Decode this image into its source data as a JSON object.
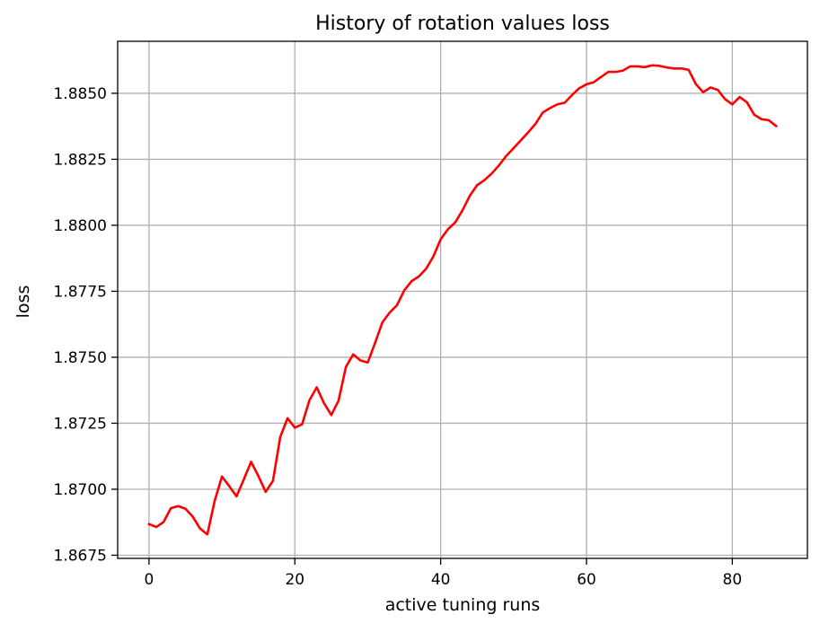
{
  "chart_data": {
    "type": "line",
    "title": "History of rotation values loss",
    "xlabel": "active tuning runs",
    "ylabel": "loss",
    "xlim": [
      -4.3,
      90.3
    ],
    "ylim": [
      1.86738,
      1.88697
    ],
    "xticks": [
      0,
      20,
      40,
      60,
      80
    ],
    "xtick_labels": [
      "0",
      "20",
      "40",
      "60",
      "80"
    ],
    "yticks": [
      1.8675,
      1.87,
      1.8725,
      1.875,
      1.8775,
      1.88,
      1.8825,
      1.885
    ],
    "ytick_labels": [
      "1.8675",
      "1.8700",
      "1.8725",
      "1.8750",
      "1.8775",
      "1.8800",
      "1.8825",
      "1.8850"
    ],
    "grid": true,
    "legend": null,
    "series": [
      {
        "color": "#ff0000",
        "x": [
          0,
          1,
          2,
          3,
          4,
          5,
          6,
          7,
          8,
          9,
          10,
          11,
          12,
          13,
          14,
          15,
          16,
          17,
          18,
          19,
          20,
          21,
          22,
          23,
          24,
          25,
          26,
          27,
          28,
          29,
          30,
          31,
          32,
          33,
          34,
          35,
          36,
          37,
          38,
          39,
          40,
          41,
          42,
          43,
          44,
          45,
          46,
          47,
          48,
          49,
          50,
          51,
          52,
          53,
          54,
          55,
          56,
          57,
          58,
          59,
          60,
          61,
          62,
          63,
          64,
          65,
          66,
          67,
          68,
          69,
          70,
          71,
          72,
          73,
          74,
          75,
          76,
          77,
          78,
          79,
          80,
          81,
          82,
          83,
          84,
          85,
          86
        ],
        "values": [
          1.86868,
          1.86857,
          1.86876,
          1.86928,
          1.86936,
          1.86926,
          1.86896,
          1.86851,
          1.86829,
          1.86955,
          1.87048,
          1.87012,
          1.86973,
          1.87037,
          1.87104,
          1.8705,
          1.8699,
          1.87032,
          1.87198,
          1.87269,
          1.87233,
          1.87246,
          1.87337,
          1.87386,
          1.87326,
          1.87281,
          1.87336,
          1.87463,
          1.87511,
          1.87488,
          1.8748,
          1.87554,
          1.87632,
          1.87669,
          1.87697,
          1.87753,
          1.87788,
          1.87806,
          1.87835,
          1.87882,
          1.87947,
          1.87985,
          1.88011,
          1.88057,
          1.88112,
          1.88152,
          1.88171,
          1.88196,
          1.88227,
          1.88263,
          1.88292,
          1.88322,
          1.88352,
          1.88384,
          1.88427,
          1.88444,
          1.88458,
          1.88464,
          1.88493,
          1.88519,
          1.88534,
          1.88542,
          1.88562,
          1.88581,
          1.88581,
          1.88586,
          1.88602,
          1.88602,
          1.88599,
          1.88606,
          1.88604,
          1.88598,
          1.88594,
          1.88594,
          1.88589,
          1.88535,
          1.88504,
          1.88522,
          1.88513,
          1.88478,
          1.88458,
          1.88486,
          1.88466,
          1.88419,
          1.88402,
          1.88398,
          1.88376
        ]
      }
    ]
  }
}
